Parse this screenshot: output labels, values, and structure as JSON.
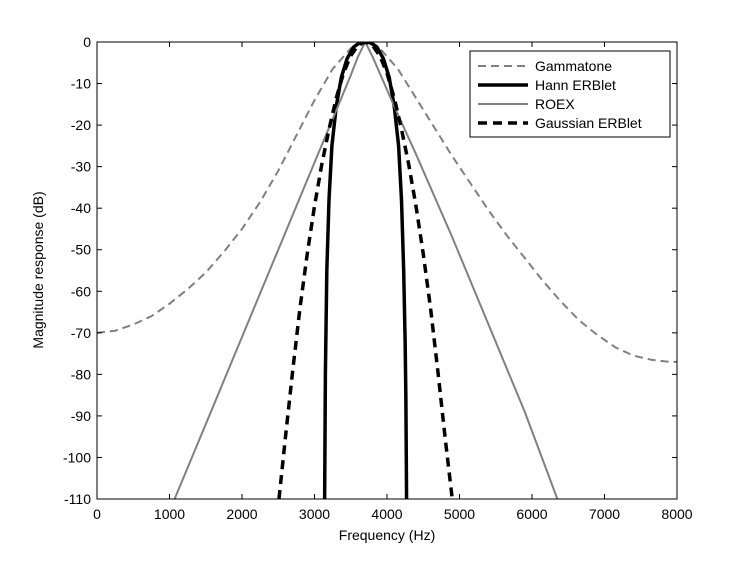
{
  "chart_data": {
    "type": "line",
    "title": "",
    "xlabel": "Frequency (Hz)",
    "ylabel": "Magnitude response (dB)",
    "xlim": [
      0,
      8000
    ],
    "ylim": [
      -110,
      0
    ],
    "xticks": [
      0,
      1000,
      2000,
      3000,
      4000,
      5000,
      6000,
      7000,
      8000
    ],
    "yticks": [
      0,
      -10,
      -20,
      -30,
      -40,
      -50,
      -60,
      -70,
      -80,
      -90,
      -100,
      -110
    ],
    "grid": false,
    "legend_position": "top-right",
    "series": [
      {
        "name": "Gammatone",
        "color": "#808080",
        "style": "dashed",
        "x": [
          0,
          250,
          500,
          750,
          1000,
          1250,
          1500,
          1750,
          2000,
          2250,
          2500,
          2750,
          3000,
          3250,
          3500,
          3700,
          3900,
          4150,
          4400,
          4650,
          4900,
          5150,
          5400,
          5650,
          5900,
          6150,
          6400,
          6650,
          6900,
          7150,
          7400,
          7650,
          7900,
          8000
        ],
        "y": [
          -70,
          -69.5,
          -68,
          -66,
          -63,
          -59.5,
          -55.5,
          -50.5,
          -45,
          -38.5,
          -31,
          -22.5,
          -14,
          -6.5,
          -1.5,
          0,
          -1.5,
          -6.5,
          -13.5,
          -20.5,
          -27.5,
          -34,
          -40.5,
          -46.5,
          -52,
          -57.5,
          -62.5,
          -67,
          -70.5,
          -73.5,
          -75.5,
          -76.5,
          -77,
          -77
        ]
      },
      {
        "name": "Hann ERBlet",
        "color": "#000000",
        "style": "solid-thick",
        "x": [
          3140,
          3150,
          3170,
          3200,
          3240,
          3300,
          3370,
          3450,
          3540,
          3620,
          3700,
          3780,
          3860,
          3950,
          4030,
          4100,
          4160,
          4200,
          4230,
          4250,
          4260,
          4270
        ],
        "y": [
          -110,
          -80,
          -55,
          -38,
          -25,
          -15.5,
          -8.5,
          -4,
          -1.2,
          -0.2,
          0,
          -0.2,
          -1.2,
          -4,
          -8.5,
          -15.5,
          -25,
          -38,
          -55,
          -72,
          -85,
          -110
        ]
      },
      {
        "name": "ROEX",
        "color": "#808080",
        "style": "solid",
        "x": [
          1070,
          1500,
          2000,
          2500,
          3000,
          3300,
          3500,
          3600,
          3700,
          3800,
          3900,
          4100,
          4400,
          4900,
          5400,
          5900,
          6350
        ],
        "y": [
          -110,
          -92,
          -71,
          -50,
          -29,
          -16.5,
          -8,
          -3.5,
          0,
          -3.5,
          -7.5,
          -15.5,
          -27,
          -47,
          -68,
          -89,
          -110
        ]
      },
      {
        "name": "Gaussian ERBlet",
        "color": "#000000",
        "style": "dashed-thick",
        "x": [
          2510,
          2600,
          2700,
          2800,
          2900,
          3000,
          3100,
          3200,
          3300,
          3400,
          3500,
          3600,
          3700,
          3800,
          3900,
          4000,
          4100,
          4200,
          4300,
          4400,
          4500,
          4600,
          4700,
          4800,
          4900
        ],
        "y": [
          -110,
          -95,
          -79,
          -64,
          -51,
          -39.5,
          -29.5,
          -21,
          -13.5,
          -7.5,
          -3.3,
          -0.8,
          0,
          -0.8,
          -3.3,
          -7.5,
          -13.5,
          -21,
          -29.5,
          -39.5,
          -51,
          -64,
          -79,
          -95,
          -110
        ]
      }
    ]
  }
}
